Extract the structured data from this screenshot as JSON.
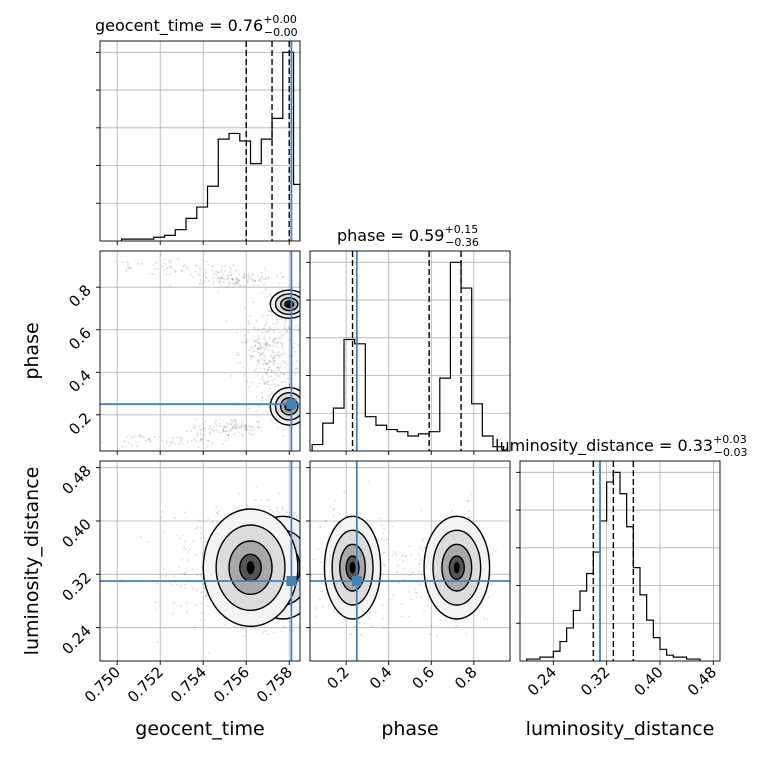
{
  "chart_data": {
    "type": "corner",
    "parameters": [
      "geocent_time",
      "phase",
      "luminosity_distance"
    ],
    "titles": [
      {
        "name": "geocent_time",
        "median": "0.76",
        "plus": "+0.00",
        "minus": "−0.00"
      },
      {
        "name": "phase",
        "median": "0.59",
        "plus": "+0.15",
        "minus": "−0.36"
      },
      {
        "name": "luminosity_distance",
        "median": "0.33",
        "plus": "+0.03",
        "minus": "−0.03"
      }
    ],
    "ranges": {
      "geocent_time": [
        0.7492,
        0.7585
      ],
      "phase": [
        0.03,
        0.97
      ],
      "luminosity_distance": [
        0.19,
        0.49
      ]
    },
    "ticks": {
      "geocent_time": {
        "values": [
          0.75,
          0.752,
          0.754,
          0.756,
          0.758
        ],
        "labels": [
          "0.750",
          "0.752",
          "0.754",
          "0.756",
          "0.758"
        ]
      },
      "phase": {
        "values": [
          0.2,
          0.4,
          0.6,
          0.8
        ],
        "labels": [
          "0.2",
          "0.4",
          "0.6",
          "0.8"
        ]
      },
      "luminosity_distance": {
        "values": [
          0.24,
          0.32,
          0.4,
          0.48
        ],
        "labels": [
          "0.24",
          "0.32",
          "0.40",
          "0.48"
        ]
      }
    },
    "truths": {
      "geocent_time": 0.7581,
      "phase": 0.25,
      "luminosity_distance": 0.31
    },
    "quantiles": {
      "geocent_time": [
        0.756,
        0.7572,
        0.758
      ],
      "phase": [
        0.23,
        0.59,
        0.74
      ],
      "luminosity_distance": [
        0.3,
        0.33,
        0.36
      ]
    },
    "histograms": {
      "geocent_time": {
        "edges": [
          0.7502,
          0.7507,
          0.7512,
          0.7517,
          0.7522,
          0.7527,
          0.7532,
          0.7537,
          0.7542,
          0.7547,
          0.7552,
          0.7557,
          0.7562,
          0.7567,
          0.7572,
          0.7577,
          0.7582,
          0.7585
        ],
        "counts": [
          1,
          1,
          1,
          2,
          3,
          6,
          12,
          18,
          29,
          54,
          57,
          53,
          41,
          54,
          65,
          100,
          30
        ]
      },
      "phase": {
        "edges": [
          0.04,
          0.09,
          0.14,
          0.19,
          0.24,
          0.29,
          0.34,
          0.39,
          0.44,
          0.49,
          0.54,
          0.59,
          0.64,
          0.69,
          0.74,
          0.79,
          0.84,
          0.89,
          0.94
        ],
        "counts": [
          3,
          13,
          20,
          52,
          50,
          16,
          12,
          10,
          9,
          7,
          8,
          9,
          34,
          88,
          76,
          22,
          7,
          2
        ]
      },
      "luminosity_distance": {
        "edges": [
          0.2,
          0.22,
          0.24,
          0.25,
          0.26,
          0.27,
          0.28,
          0.29,
          0.3,
          0.31,
          0.32,
          0.33,
          0.34,
          0.35,
          0.36,
          0.37,
          0.38,
          0.39,
          0.4,
          0.41,
          0.42,
          0.44,
          0.46
        ],
        "counts": [
          1,
          2,
          5,
          10,
          17,
          26,
          36,
          45,
          56,
          72,
          92,
          97,
          86,
          69,
          48,
          34,
          21,
          12,
          6,
          3,
          2,
          1
        ]
      }
    }
  }
}
